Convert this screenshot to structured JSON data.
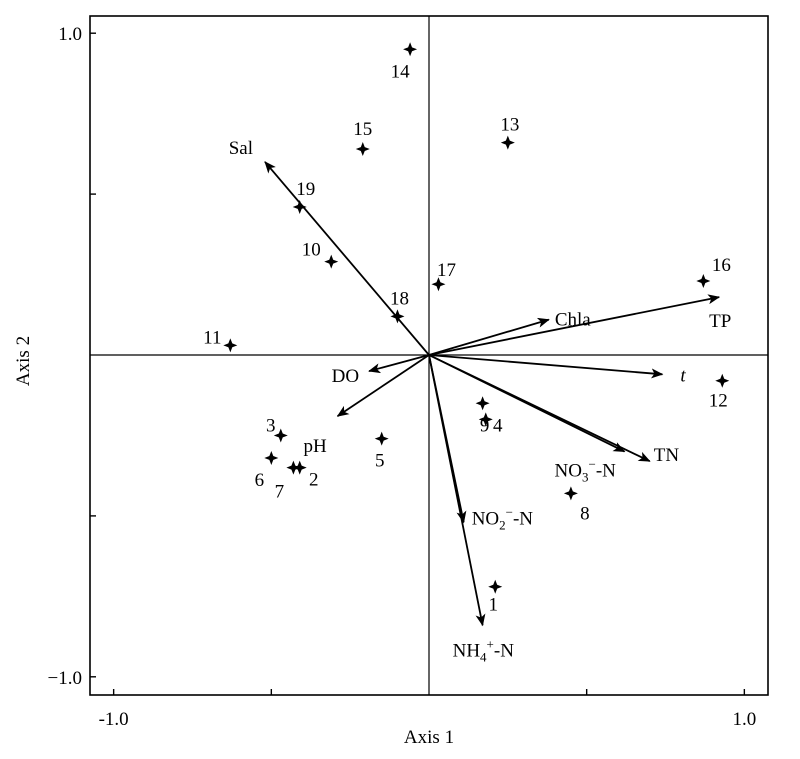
{
  "chart_data": {
    "type": "scatter",
    "xlabel": "Axis 1",
    "ylabel": "Axis 2",
    "xlim": [
      -1.0,
      1.0
    ],
    "ylim": [
      -1.0,
      1.0
    ],
    "x_ticks": [
      {
        "value": -1.0,
        "label": "-1.0"
      },
      {
        "value": 1.0,
        "label": "1.0"
      }
    ],
    "y_ticks": [
      {
        "value": 1.0,
        "label": "1.0"
      },
      {
        "value": -1.0,
        "label": "−1.0"
      }
    ],
    "minor_ticks_x": [
      -0.5,
      0.5
    ],
    "minor_ticks_y": [
      0.5,
      -0.5
    ],
    "zero_lines": true,
    "grid": false,
    "vectors": [
      {
        "name": "Sal",
        "x": -0.52,
        "y": 0.6,
        "label": "Sal"
      },
      {
        "name": "Chla",
        "x": 0.38,
        "y": 0.11,
        "label": "Chla"
      },
      {
        "name": "TP",
        "x": 0.92,
        "y": 0.18,
        "label": "TP"
      },
      {
        "name": "t",
        "x": 0.74,
        "y": -0.06,
        "label": "t",
        "italic": true
      },
      {
        "name": "TN",
        "x": 0.7,
        "y": -0.33,
        "label": "TN"
      },
      {
        "name": "NO3-N",
        "x": 0.62,
        "y": -0.3,
        "label_main": "NO",
        "label_sub": "3",
        "label_sup": "−",
        "label_tail": "-N"
      },
      {
        "name": "NO2-N",
        "x": 0.11,
        "y": -0.52,
        "label_main": "NO",
        "label_sub": "2",
        "label_sup": "−",
        "label_tail": "-N"
      },
      {
        "name": "NH4-N",
        "x": 0.17,
        "y": -0.84,
        "label_main": "NH",
        "label_sub": "4",
        "label_sup": "+",
        "label_tail": "-N"
      },
      {
        "name": "DO",
        "x": -0.19,
        "y": -0.05,
        "label": "DO"
      },
      {
        "name": "pH",
        "x": -0.29,
        "y": -0.19,
        "label": "pH"
      }
    ],
    "points": [
      {
        "label": "1",
        "x": 0.21,
        "y": -0.72
      },
      {
        "label": "2",
        "x": -0.41,
        "y": -0.35
      },
      {
        "label": "3",
        "x": -0.47,
        "y": -0.25
      },
      {
        "label": "4",
        "x": 0.18,
        "y": -0.2
      },
      {
        "label": "5",
        "x": -0.15,
        "y": -0.26
      },
      {
        "label": "6",
        "x": -0.5,
        "y": -0.32
      },
      {
        "label": "7",
        "x": -0.43,
        "y": -0.35
      },
      {
        "label": "8",
        "x": 0.45,
        "y": -0.43
      },
      {
        "label": "9",
        "x": 0.17,
        "y": -0.15
      },
      {
        "label": "10",
        "x": -0.31,
        "y": 0.29
      },
      {
        "label": "11",
        "x": -0.63,
        "y": 0.03
      },
      {
        "label": "12",
        "x": 0.93,
        "y": -0.08
      },
      {
        "label": "13",
        "x": 0.25,
        "y": 0.66
      },
      {
        "label": "14",
        "x": -0.06,
        "y": 0.95
      },
      {
        "label": "15",
        "x": -0.21,
        "y": 0.64
      },
      {
        "label": "16",
        "x": 0.87,
        "y": 0.23
      },
      {
        "label": "17",
        "x": 0.03,
        "y": 0.22
      },
      {
        "label": "18",
        "x": -0.1,
        "y": 0.12
      },
      {
        "label": "19",
        "x": -0.41,
        "y": 0.46
      }
    ]
  }
}
